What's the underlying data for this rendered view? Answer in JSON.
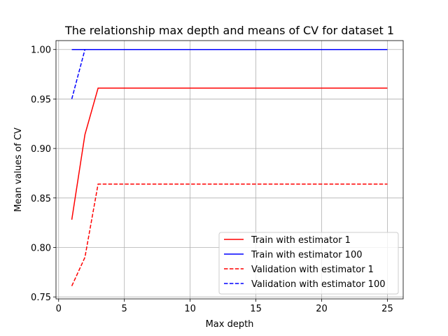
{
  "chart_data": {
    "type": "line",
    "title": "The relationship max depth and means of CV for dataset 1",
    "xlabel": "Max depth",
    "ylabel": "Mean values of CV",
    "xlim": [
      -0.2,
      26.2
    ],
    "ylim": [
      0.748,
      1.009
    ],
    "x_ticks": [
      0,
      5,
      10,
      15,
      20,
      25
    ],
    "y_ticks": [
      0.75,
      0.8,
      0.85,
      0.9,
      0.95,
      1.0
    ],
    "grid": true,
    "legend_position": "lower-right",
    "x": [
      1,
      2,
      3,
      4,
      5,
      6,
      7,
      8,
      9,
      10,
      11,
      12,
      13,
      14,
      15,
      16,
      17,
      18,
      19,
      20,
      21,
      22,
      23,
      24,
      25
    ],
    "series": [
      {
        "name": "Train with estimator 1",
        "color": "#ff0000",
        "dash": "solid",
        "values": [
          0.828,
          0.914,
          0.961,
          0.961,
          0.961,
          0.961,
          0.961,
          0.961,
          0.961,
          0.961,
          0.961,
          0.961,
          0.961,
          0.961,
          0.961,
          0.961,
          0.961,
          0.961,
          0.961,
          0.961,
          0.961,
          0.961,
          0.961,
          0.961,
          0.961
        ]
      },
      {
        "name": "Train with estimator 100",
        "color": "#0000ff",
        "dash": "solid",
        "values": [
          1.0,
          1.0,
          1.0,
          1.0,
          1.0,
          1.0,
          1.0,
          1.0,
          1.0,
          1.0,
          1.0,
          1.0,
          1.0,
          1.0,
          1.0,
          1.0,
          1.0,
          1.0,
          1.0,
          1.0,
          1.0,
          1.0,
          1.0,
          1.0,
          1.0
        ]
      },
      {
        "name": "Validation with estimator 1",
        "color": "#ff0000",
        "dash": "dashed",
        "values": [
          0.761,
          0.79,
          0.864,
          0.864,
          0.864,
          0.864,
          0.864,
          0.864,
          0.864,
          0.864,
          0.864,
          0.864,
          0.864,
          0.864,
          0.864,
          0.864,
          0.864,
          0.864,
          0.864,
          0.864,
          0.864,
          0.864,
          0.864,
          0.864,
          0.864
        ]
      },
      {
        "name": "Validation with estimator 100",
        "color": "#0000ff",
        "dash": "dashed",
        "values": [
          0.95,
          1.0,
          1.0,
          1.0,
          1.0,
          1.0,
          1.0,
          1.0,
          1.0,
          1.0,
          1.0,
          1.0,
          1.0,
          1.0,
          1.0,
          1.0,
          1.0,
          1.0,
          1.0,
          1.0,
          1.0,
          1.0,
          1.0,
          1.0,
          1.0
        ]
      }
    ]
  }
}
